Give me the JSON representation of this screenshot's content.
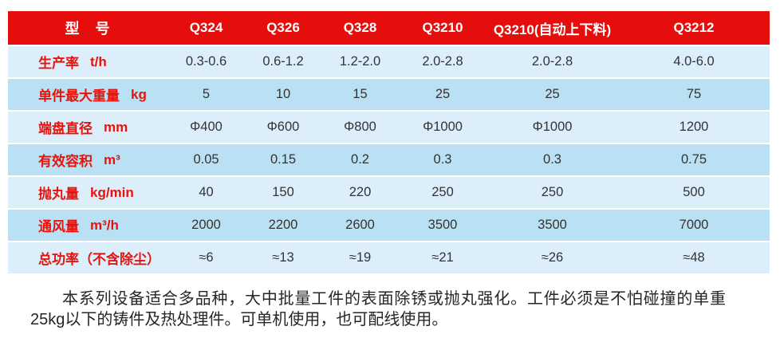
{
  "colors": {
    "header_red": "#e60d0d",
    "row_light": "#dceefa",
    "row_dark": "#b9e0f3",
    "label_red": "#e8120c",
    "value_text": "#333333",
    "desc_text": "#262626"
  },
  "table": {
    "header": {
      "label": "型　号",
      "models": [
        "Q324",
        "Q326",
        "Q328",
        "Q3210",
        "Q3210(自动上下料)",
        "Q3212"
      ]
    },
    "rows": [
      {
        "label": "生产率",
        "unit": "t/h",
        "values": [
          "0.3-0.6",
          "0.6-1.2",
          "1.2-2.0",
          "2.0-2.8",
          "2.0-2.8",
          "4.0-6.0"
        ]
      },
      {
        "label": "单件最大重量",
        "unit": "kg",
        "values": [
          "5",
          "10",
          "15",
          "25",
          "25",
          "75"
        ]
      },
      {
        "label": "端盘直径",
        "unit": "mm",
        "values": [
          "Φ400",
          "Φ600",
          "Φ800",
          "Φ1000",
          "Φ1000",
          "1200"
        ]
      },
      {
        "label": "有效容积",
        "unit": "m³",
        "values": [
          "0.05",
          "0.15",
          "0.2",
          "0.3",
          "0.3",
          "0.75"
        ]
      },
      {
        "label": "抛丸量",
        "unit": "kg/min",
        "values": [
          "40",
          "150",
          "220",
          "250",
          "250",
          "500"
        ]
      },
      {
        "label": "通风量",
        "unit": "m³/h",
        "values": [
          "2000",
          "2200",
          "2600",
          "3500",
          "3500",
          "7000"
        ]
      },
      {
        "label": "总功率（不含除尘）",
        "unit": "",
        "values": [
          "≈6",
          "≈13",
          "≈19",
          "≈21",
          "≈26",
          "≈48"
        ]
      }
    ]
  },
  "description": "本系列设备适合多品种，大中批量工件的表面除锈或抛丸强化。工件必须是不怕碰撞的单重25kg以下的铸件及热处理件。可单机使用，也可配线使用。"
}
